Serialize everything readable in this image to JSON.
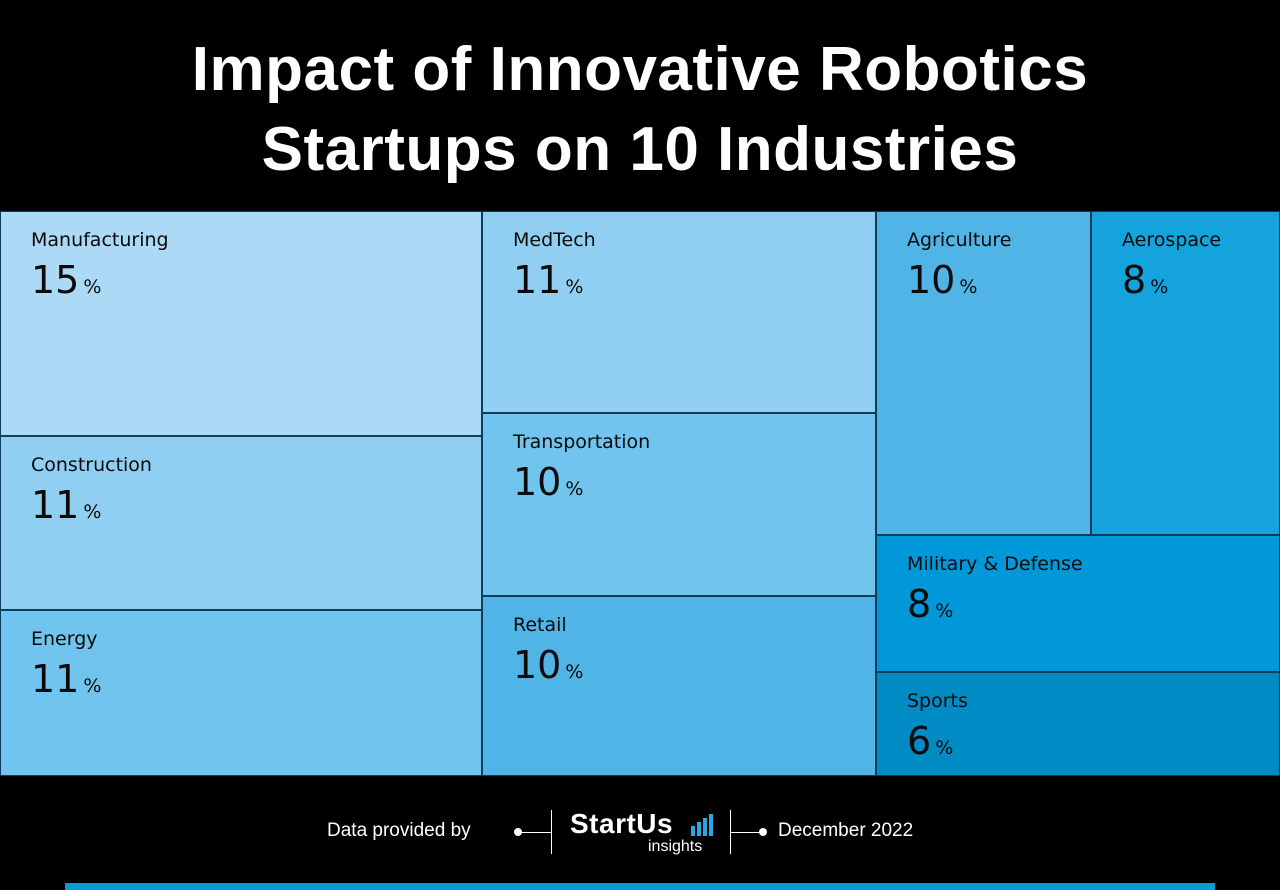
{
  "title": {
    "line1": "Impact of Innovative Robotics",
    "line2": "Startups on 10 Industries"
  },
  "chart_data": {
    "type": "treemap",
    "title": "Impact of Innovative Robotics Startups on 10 Industries",
    "unit": "%",
    "items": [
      {
        "name": "Manufacturing",
        "value": 15,
        "color": "#abd9f6"
      },
      {
        "name": "Construction",
        "value": 11,
        "color": "#90cff2"
      },
      {
        "name": "Energy",
        "value": 11,
        "color": "#70c4ee"
      },
      {
        "name": "MedTech",
        "value": 11,
        "color": "#90cff2"
      },
      {
        "name": "Transportation",
        "value": 10,
        "color": "#70c4ee"
      },
      {
        "name": "Retail",
        "value": 10,
        "color": "#50b4e6"
      },
      {
        "name": "Agriculture",
        "value": 10,
        "color": "#50b4e6"
      },
      {
        "name": "Aerospace",
        "value": 8,
        "color": "#15a3de"
      },
      {
        "name": "Military & Defense",
        "value": 8,
        "color": "#0098d8"
      },
      {
        "name": "Sports",
        "value": 6,
        "color": "#008bc4"
      }
    ]
  },
  "footer": {
    "provided_by": "Data provided by",
    "brand": "StartUs",
    "brand_sub": "insights",
    "date": "December 2022"
  },
  "colors": {
    "background": "#000000",
    "accent": "#0a9ad6",
    "logo_bars": "#29a8e0"
  },
  "icons": {
    "logo_bars": "bar-chart-icon"
  }
}
